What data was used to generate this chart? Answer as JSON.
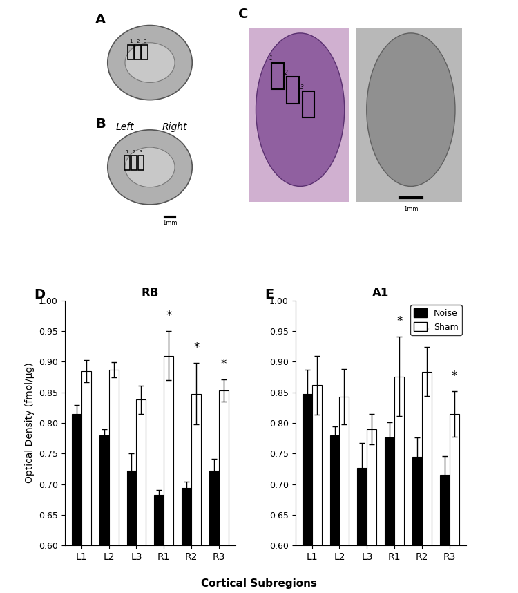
{
  "panel_labels": [
    "A",
    "B",
    "C",
    "D",
    "E"
  ],
  "RB_title": "RB",
  "A1_title": "A1",
  "x_labels": [
    "L1",
    "L2",
    "L3",
    "R1",
    "R2",
    "R3"
  ],
  "ylabel": "Optical Density (fmol/μg)",
  "xlabel": "Cortical Subregions",
  "ylim": [
    0.6,
    1.0
  ],
  "yticks": [
    0.6,
    0.65,
    0.7,
    0.75,
    0.8,
    0.85,
    0.9,
    0.95,
    1.0
  ],
  "legend_labels": [
    "Noise",
    "Sham"
  ],
  "legend_colors": [
    "#000000",
    "#ffffff"
  ],
  "RB_noise": [
    0.815,
    0.78,
    0.722,
    0.683,
    0.694,
    0.722
  ],
  "RB_sham": [
    0.885,
    0.887,
    0.838,
    0.91,
    0.848,
    0.853
  ],
  "RB_noise_err": [
    0.015,
    0.01,
    0.028,
    0.008,
    0.01,
    0.02
  ],
  "RB_sham_err": [
    0.018,
    0.012,
    0.023,
    0.04,
    0.05,
    0.018
  ],
  "A1_noise": [
    0.847,
    0.78,
    0.727,
    0.776,
    0.745,
    0.716
  ],
  "A1_sham": [
    0.862,
    0.843,
    0.79,
    0.876,
    0.884,
    0.815
  ],
  "A1_noise_err": [
    0.04,
    0.015,
    0.04,
    0.025,
    0.032,
    0.03
  ],
  "A1_sham_err": [
    0.048,
    0.045,
    0.025,
    0.065,
    0.04,
    0.037
  ],
  "RB_sig": [
    false,
    false,
    false,
    true,
    true,
    true
  ],
  "A1_sig": [
    false,
    false,
    false,
    true,
    true,
    true
  ],
  "bar_width": 0.35,
  "background_top": "#f0f0f0",
  "left_label": "Left",
  "right_label": "Right"
}
